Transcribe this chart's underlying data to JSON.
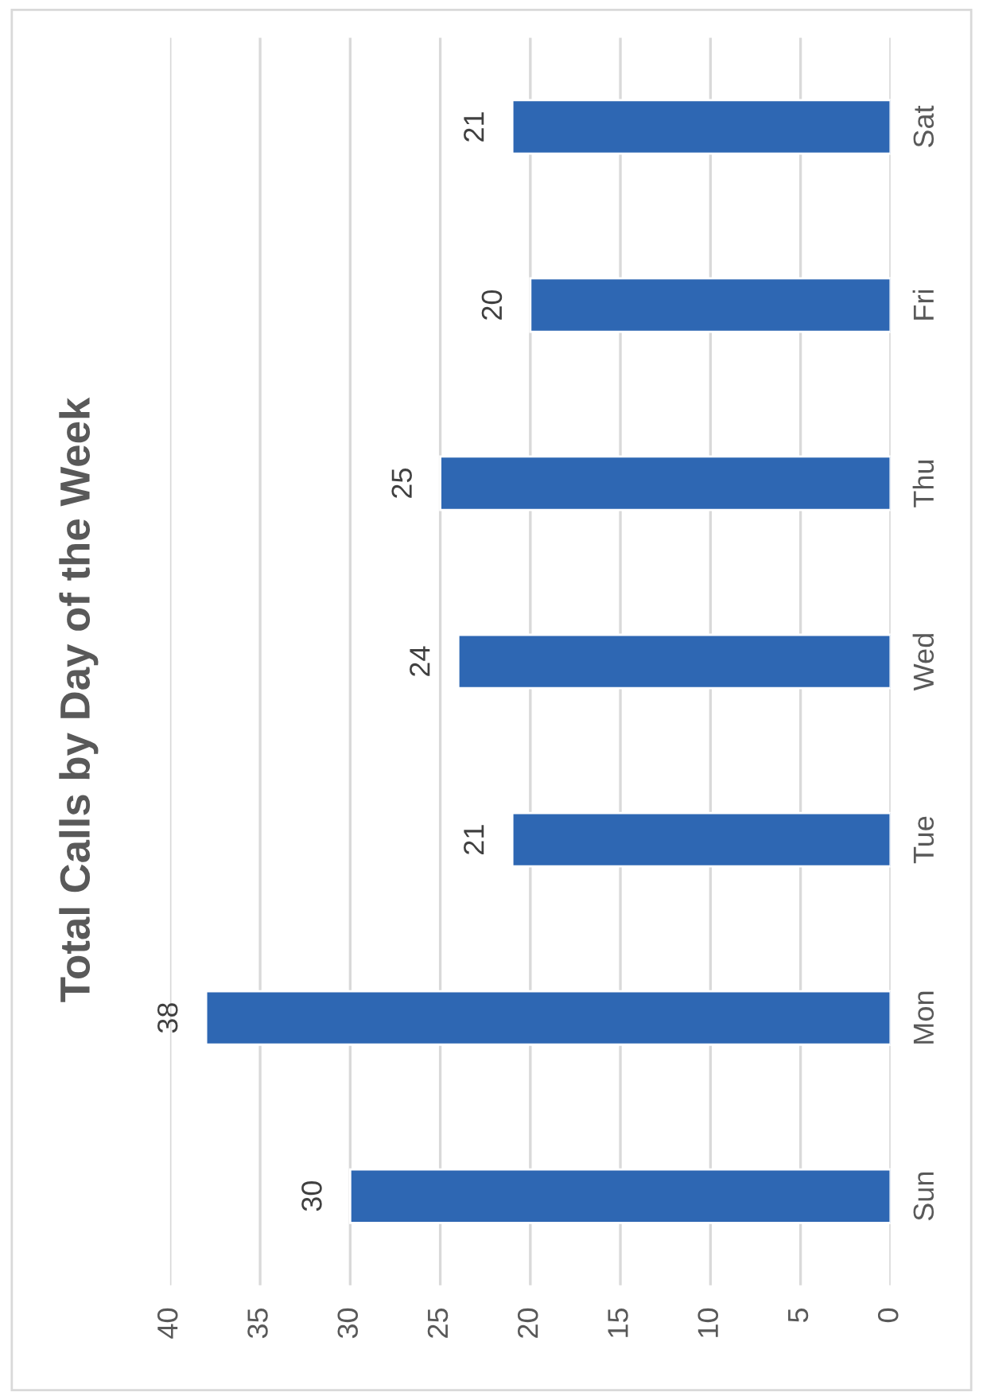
{
  "chart_data": {
    "type": "bar",
    "orientation": "horizontal",
    "title": "Total Calls by Day of the Week",
    "categories": [
      "Sat",
      "Fri",
      "Thu",
      "Wed",
      "Tue",
      "Mon",
      "Sun"
    ],
    "values": [
      21,
      20,
      25,
      24,
      21,
      38,
      30
    ],
    "color": "#2e67b3",
    "xlim": [
      40,
      0
    ],
    "xticks": [
      0,
      5,
      10,
      15,
      20,
      25,
      30,
      35,
      40
    ],
    "grid": "x",
    "data_labels": true
  }
}
